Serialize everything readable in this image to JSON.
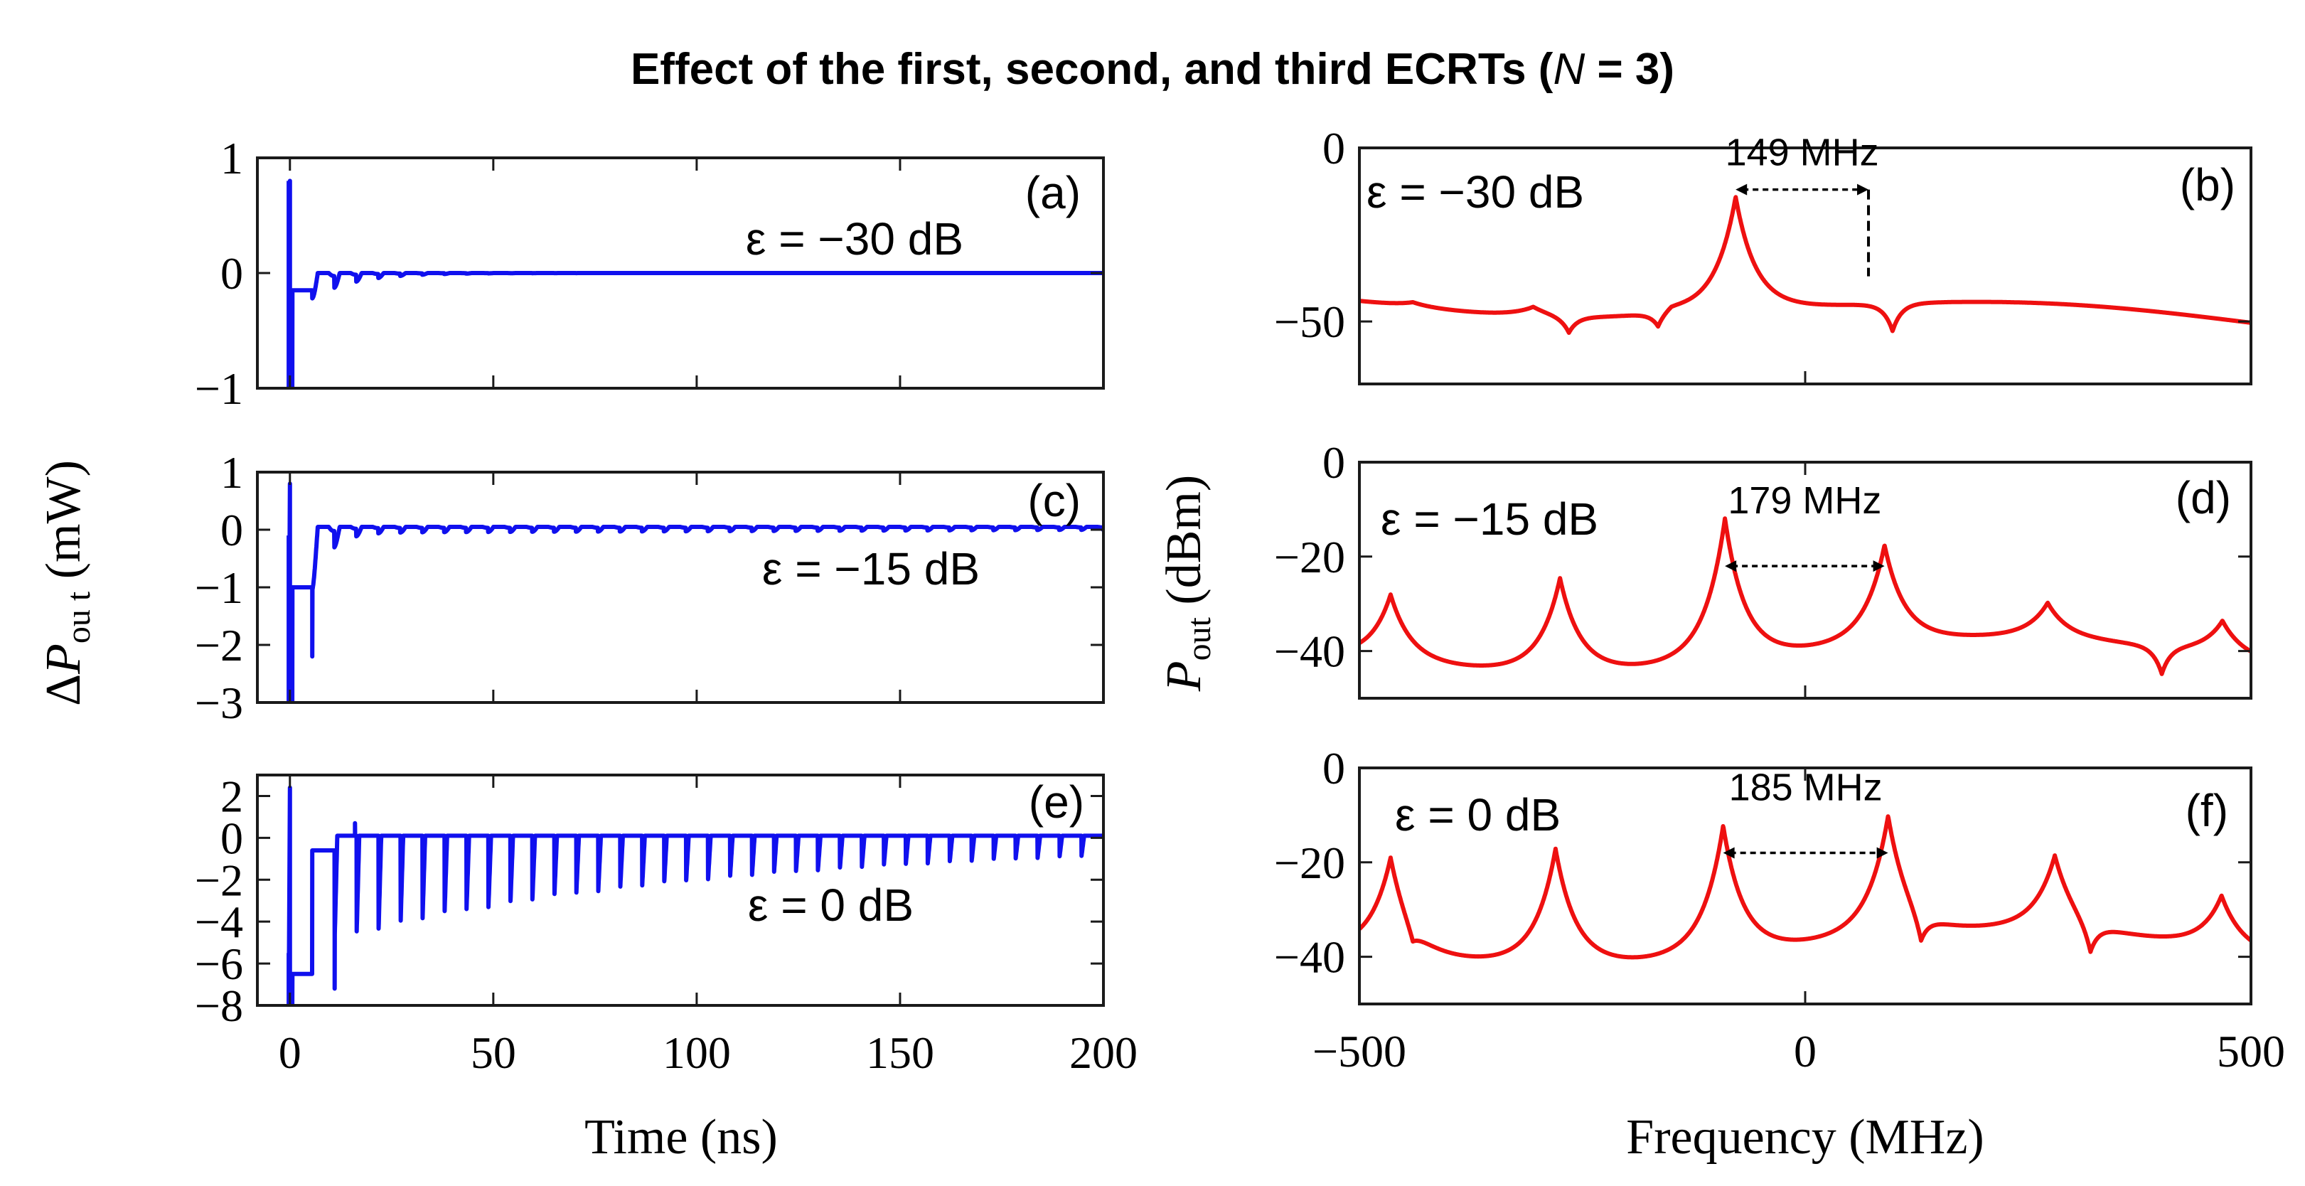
{
  "title": "Effect of the first, second, and third ECRTs (N = 3)",
  "title_parts": {
    "before": "Effect of the first, second, and third ECRTs (",
    "n": "N",
    "after": " = 3)"
  },
  "left_ylabel": {
    "delta": "Δ",
    "p": "P",
    "sub": "ou t",
    "unit": " (mW)"
  },
  "right_ylabel": {
    "p": "P",
    "sub": "out",
    "unit": " (dBm)"
  },
  "chart_data": [
    {
      "id": "a",
      "type": "line",
      "panel_label": "(a)",
      "annotation": "ε = −30 dB",
      "color": "#1010ee",
      "xlabel": "",
      "xlim": [
        -8,
        200
      ],
      "ylim": [
        -1,
        1
      ],
      "yticks": [
        -1,
        0,
        1
      ],
      "ytick_labels": [
        "−1",
        "0",
        "1"
      ],
      "xticks": [
        0,
        50,
        100,
        150,
        200
      ],
      "xtick_labels": [],
      "signal": {
        "kind": "time",
        "base": 0,
        "start_jump": 0.8,
        "start_low": -1.0,
        "step": -0.15,
        "step_end": 5.5,
        "spikes": [],
        "ring_amp": 0.22,
        "ring_decay": 0.1,
        "ring_period": 5.4
      }
    },
    {
      "id": "c",
      "type": "line",
      "panel_label": "(c)",
      "annotation": "ε = −15 dB",
      "color": "#1010ee",
      "xlabel": "",
      "xlim": [
        -8,
        200
      ],
      "ylim": [
        -3,
        1
      ],
      "yticks": [
        -3,
        -2,
        -1,
        0,
        1
      ],
      "ytick_labels": [
        "−3",
        "−2",
        "−1",
        "0",
        "1"
      ],
      "xticks": [
        0,
        50,
        100,
        150,
        200
      ],
      "xtick_labels": [],
      "signal": {
        "kind": "time",
        "base": 0.05,
        "start_jump": -0.1,
        "start_low": -3.0,
        "step": -1.0,
        "step_end": 5.5,
        "spikes": [
          {
            "x": 5.5,
            "y": -2.2
          }
        ],
        "ring_amp": 1.0,
        "ring_decay": 0.25,
        "ring_period": 5.4,
        "ring_floor": 0.1
      }
    },
    {
      "id": "e",
      "type": "line",
      "panel_label": "(e)",
      "annotation": "ε = 0 dB",
      "color": "#1010ee",
      "xlabel": "Time (ns)",
      "xlim": [
        -8,
        200
      ],
      "ylim": [
        -8,
        3
      ],
      "yticks": [
        -8,
        -6,
        -4,
        -2,
        0,
        2
      ],
      "ytick_labels": [
        "−8",
        "−6",
        "−4",
        "−2",
        "0",
        "2"
      ],
      "xticks": [
        0,
        50,
        100,
        150,
        200
      ],
      "xtick_labels": [
        "0",
        "50",
        "100",
        "150",
        "200"
      ],
      "signal": {
        "kind": "time",
        "base": 0.1,
        "start_jump": -5.5,
        "start_low": -8.0,
        "step": -6.5,
        "step_end": 5.5,
        "step2": -0.6,
        "step2_end": 11.0,
        "spikes": [
          {
            "x": 11,
            "y": -7.2
          },
          {
            "x": 16,
            "y": 0.7
          }
        ],
        "ring_amp": 4.0,
        "ring_decay": 0.012,
        "ring_period": 5.4,
        "ring_floor": 1.0
      }
    },
    {
      "id": "b",
      "type": "line",
      "panel_label": "(b)",
      "annotation": "ε = −30 dB",
      "color": "#ee1010",
      "xlabel": "",
      "xlim": [
        -500,
        500
      ],
      "ylim": [
        -68,
        0
      ],
      "yticks": [
        -50,
        0
      ],
      "ytick_labels": [
        "−50",
        "0"
      ],
      "xticks": [
        -500,
        0,
        500
      ],
      "xtick_labels": [],
      "signal": {
        "kind": "spectrum",
        "base": -45,
        "slope": -0.006,
        "peaks": [
          {
            "f": -78,
            "h": 35
          },
          {
            "f": -305,
            "h": 3
          },
          {
            "f": -150,
            "h": 2
          },
          {
            "f": -440,
            "h": 1.5
          }
        ],
        "dips": [
          {
            "f": -265,
            "d": 5
          },
          {
            "f": -165,
            "d": 5
          },
          {
            "f": 98,
            "d": 8
          }
        ]
      },
      "separation": {
        "label": "149 MHz",
        "f1": -78,
        "f2": 71,
        "y": -12
      }
    },
    {
      "id": "d",
      "type": "line",
      "panel_label": "(d)",
      "annotation": "ε = −15 dB",
      "color": "#ee1010",
      "xlabel": "",
      "xlim": [
        -500,
        500
      ],
      "ylim": [
        -50,
        0
      ],
      "yticks": [
        -40,
        -20,
        0
      ],
      "ytick_labels": [
        "−40",
        "−20",
        "0"
      ],
      "xticks": [
        -500,
        0,
        500
      ],
      "xtick_labels": [],
      "signal": {
        "kind": "spectrum",
        "base": -44,
        "slope": 0,
        "peaks": [
          {
            "f": -465,
            "h": 15
          },
          {
            "f": -275,
            "h": 21
          },
          {
            "f": -90,
            "h": 32
          },
          {
            "f": 89,
            "h": 22
          },
          {
            "f": 272,
            "h": 8
          },
          {
            "f": 468,
            "h": 8
          }
        ],
        "dips": [
          {
            "f": 400,
            "d": 6
          }
        ]
      },
      "separation": {
        "label": "179 MHz",
        "f1": -90,
        "f2": 89,
        "y": -22
      }
    },
    {
      "id": "f",
      "type": "line",
      "panel_label": "(f)",
      "annotation": "ε = 0 dB",
      "color": "#ee1010",
      "xlabel": "Frequency (MHz)",
      "xlim": [
        -500,
        500
      ],
      "ylim": [
        -50,
        0
      ],
      "yticks": [
        -40,
        -20,
        0
      ],
      "ytick_labels": [
        "−40",
        "−20",
        "0"
      ],
      "xticks": [
        -500,
        0,
        500
      ],
      "xtick_labels": [
        "−500",
        "0",
        "500"
      ],
      "signal": {
        "kind": "spectrum",
        "base": -42,
        "slope": 0,
        "peaks": [
          {
            "f": -465,
            "h": 22
          },
          {
            "f": -280,
            "h": 26
          },
          {
            "f": -92,
            "h": 29
          },
          {
            "f": 93,
            "h": 27
          },
          {
            "f": 280,
            "h": 17
          },
          {
            "f": 467,
            "h": 12
          }
        ],
        "dips": [
          {
            "f": -440,
            "d": 4
          },
          {
            "f": 130,
            "d": 7
          },
          {
            "f": 320,
            "d": 7
          }
        ]
      },
      "separation": {
        "label": "185 MHz",
        "f1": -92,
        "f2": 93,
        "y": -18
      }
    }
  ]
}
